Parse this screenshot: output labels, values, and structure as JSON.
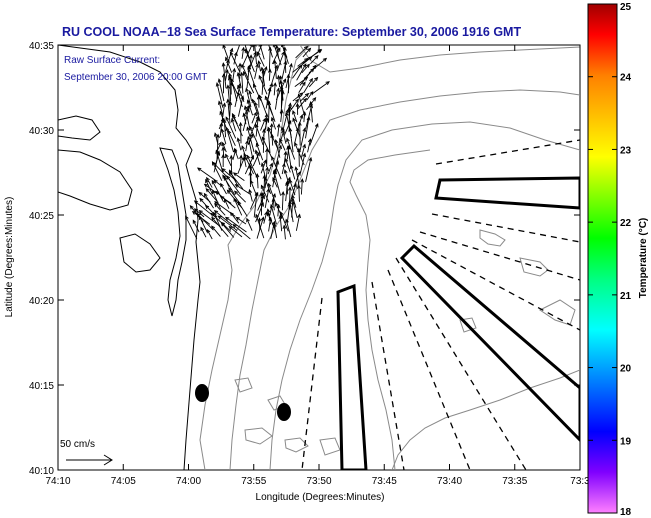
{
  "title": "RU COOL  NOAA−18  Sea Surface Temperature:  September 30, 2006 1916 GMT",
  "inset": {
    "line1": "Raw Surface Current:",
    "line2": "September 30, 2006 20:00 GMT"
  },
  "scale_label": "50 cm/s",
  "xlabel": "Longitude (Degrees:Minutes)",
  "ylabel": "Latitude (Degrees:Minutes)",
  "x_ticks": [
    "74:10",
    "74:05",
    "74:00",
    "73:55",
    "73:50",
    "73:45",
    "73:40",
    "73:35",
    "73:3"
  ],
  "y_ticks": [
    "40:35",
    "40:30",
    "40:25",
    "40:20",
    "40:15",
    "40:10"
  ],
  "colorbar": {
    "label": "Temperature (°C)",
    "ticks": [
      "25",
      "24",
      "23",
      "22",
      "21",
      "20",
      "19",
      "18"
    ],
    "min": 18,
    "max": 25,
    "stops": [
      "#ff80ff",
      "#8000ff",
      "#0000ff",
      "#0080ff",
      "#00ffff",
      "#00ff80",
      "#00ff00",
      "#80ff00",
      "#ffff00",
      "#ffc000",
      "#ff8000",
      "#ff0000",
      "#a00000"
    ]
  },
  "colors": {
    "title": "#1a1aa0",
    "contour": "#8a8a8a",
    "coast": "#000000"
  }
}
